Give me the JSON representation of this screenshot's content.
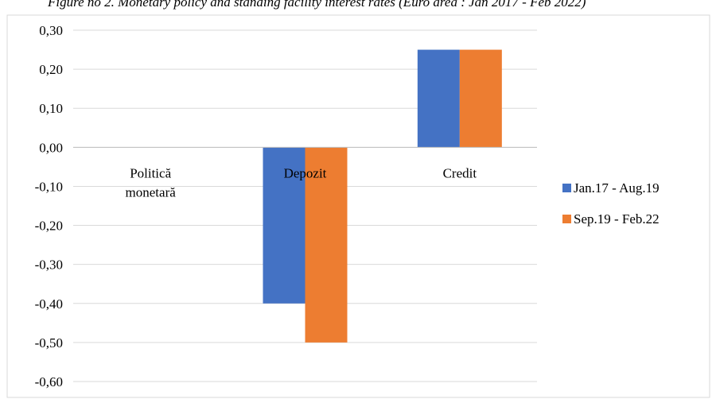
{
  "caption": "Figure no 2. Monetary policy and standing facility interest rates (Euro area : Jan 2017 - Feb 2022)",
  "chart_data": {
    "type": "bar",
    "categories": [
      [
        "Politică",
        "monetară"
      ],
      [
        "Depozit"
      ],
      [
        "Credit"
      ]
    ],
    "series": [
      {
        "name": "Jan.17 - Aug.19",
        "color": "#4472C4",
        "values": [
          0.0,
          -0.4,
          0.25
        ]
      },
      {
        "name": "Sep.19 - Feb.22",
        "color": "#ED7D31",
        "values": [
          0.0,
          -0.5,
          0.25
        ]
      }
    ],
    "y_ticks": [
      "0,30",
      "0,20",
      "0,10",
      "0,00",
      "-0,10",
      "-0,20",
      "-0,30",
      "-0,40",
      "-0,50",
      "-0,60"
    ],
    "ylim": [
      -0.6,
      0.3
    ],
    "grid": true,
    "legend_position": "right"
  }
}
